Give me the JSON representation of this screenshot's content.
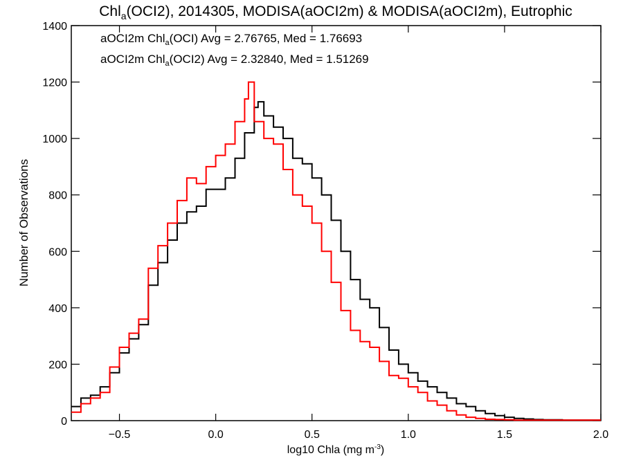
{
  "chart_data": {
    "type": "line",
    "step": true,
    "title": {
      "pre": "Chl",
      "sub": "a",
      "post": "(OCI2), 2014305, MODISA(aOCI2m) & MODISA(aOCI2m), Eutrophic"
    },
    "xlabel": {
      "pre": "log10 Chla (mg m",
      "sup": "-3",
      "post": ")"
    },
    "ylabel": "Number of Observations",
    "xlim": [
      -0.75,
      2.0
    ],
    "ylim": [
      0,
      1400
    ],
    "xticks": [
      -0.5,
      0.0,
      0.5,
      1.0,
      1.5,
      2.0
    ],
    "xtick_labels": [
      "−0.5",
      "0.0",
      "0.5",
      "1.0",
      "1.5",
      "2.0"
    ],
    "yticks": [
      0,
      200,
      400,
      600,
      800,
      1000,
      1200,
      1400
    ],
    "ytick_labels": [
      "0",
      "200",
      "400",
      "600",
      "800",
      "1000",
      "1200",
      "1400"
    ],
    "grid": false,
    "legend_placement": "top-left",
    "series": [
      {
        "legend": {
          "pre": "aOCI2m Chl",
          "sub": "a",
          "post": "(OCI) Avg = 2.76765, Med = 1.76693"
        },
        "color": "#000000",
        "x": [
          -0.75,
          -0.7,
          -0.65,
          -0.6,
          -0.55,
          -0.5,
          -0.45,
          -0.4,
          -0.35,
          -0.3,
          -0.25,
          -0.2,
          -0.15,
          -0.1,
          -0.05,
          0.0,
          0.05,
          0.1,
          0.15,
          0.2,
          0.22,
          0.25,
          0.3,
          0.35,
          0.4,
          0.45,
          0.5,
          0.55,
          0.6,
          0.65,
          0.7,
          0.75,
          0.8,
          0.85,
          0.9,
          0.95,
          1.0,
          1.05,
          1.1,
          1.15,
          1.2,
          1.25,
          1.3,
          1.35,
          1.4,
          1.45,
          1.5,
          1.55,
          1.6,
          1.65,
          1.7,
          1.75,
          1.8,
          1.85,
          1.9,
          1.95,
          2.0
        ],
        "y": [
          50,
          80,
          90,
          120,
          170,
          240,
          290,
          340,
          480,
          560,
          640,
          700,
          740,
          760,
          820,
          820,
          860,
          930,
          1020,
          1110,
          1130,
          1080,
          1040,
          1000,
          930,
          910,
          860,
          800,
          710,
          600,
          500,
          430,
          400,
          330,
          250,
          200,
          170,
          140,
          120,
          100,
          80,
          60,
          50,
          35,
          25,
          18,
          12,
          8,
          6,
          4,
          3,
          3,
          2,
          2,
          2,
          2,
          2
        ]
      },
      {
        "legend": {
          "pre": "aOCI2m Chl",
          "sub": "a",
          "post": "(OCI2) Avg = 2.32840, Med = 1.51269"
        },
        "color": "#ff0000",
        "x": [
          -0.75,
          -0.7,
          -0.65,
          -0.6,
          -0.55,
          -0.5,
          -0.45,
          -0.4,
          -0.35,
          -0.3,
          -0.25,
          -0.2,
          -0.15,
          -0.1,
          -0.05,
          0.0,
          0.05,
          0.1,
          0.15,
          0.17,
          0.2,
          0.25,
          0.3,
          0.35,
          0.4,
          0.45,
          0.5,
          0.55,
          0.6,
          0.65,
          0.7,
          0.75,
          0.8,
          0.85,
          0.9,
          0.95,
          1.0,
          1.05,
          1.1,
          1.15,
          1.2,
          1.25,
          1.3,
          1.35,
          1.4,
          1.45,
          1.5,
          1.55,
          1.6,
          1.65,
          1.7,
          1.75,
          1.8,
          1.85,
          1.9,
          1.95,
          2.0
        ],
        "y": [
          30,
          60,
          80,
          100,
          190,
          260,
          310,
          360,
          540,
          620,
          700,
          780,
          860,
          840,
          900,
          940,
          980,
          1060,
          1140,
          1200,
          1060,
          1000,
          980,
          890,
          800,
          760,
          700,
          600,
          490,
          390,
          320,
          280,
          260,
          210,
          160,
          150,
          120,
          100,
          70,
          55,
          35,
          20,
          12,
          8,
          5,
          4,
          3,
          2,
          2,
          2,
          2,
          2,
          2,
          2,
          2,
          2,
          2
        ]
      }
    ]
  }
}
